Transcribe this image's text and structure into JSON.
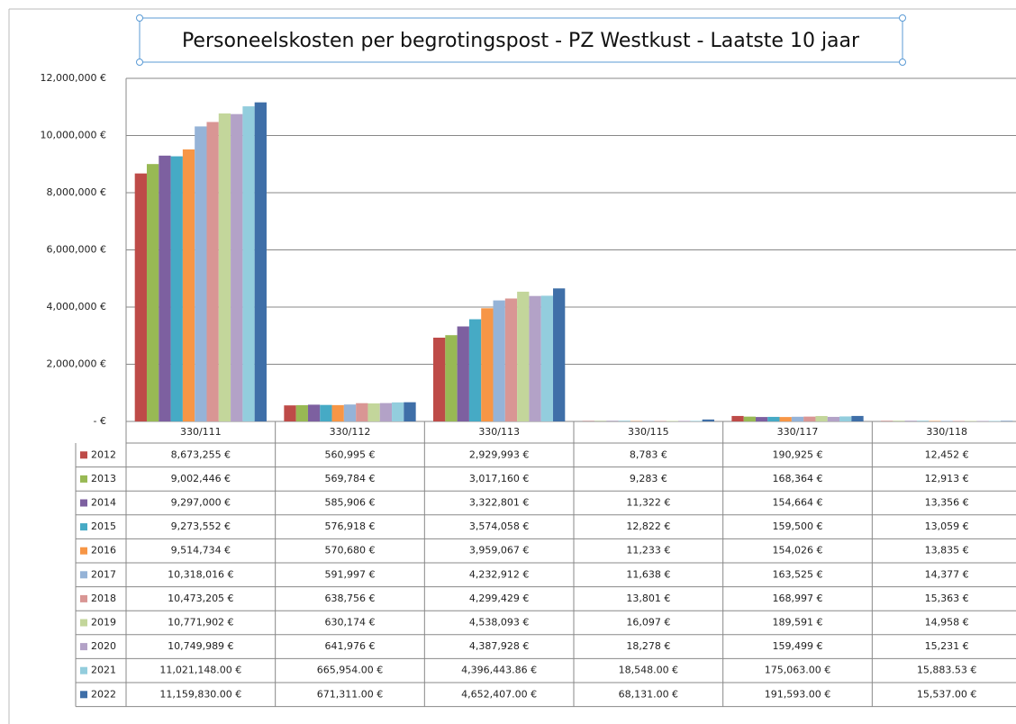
{
  "chart_data": {
    "type": "bar",
    "title": "Personeelskosten per begrotingspost - PZ Westkust - Laatste 10 jaar",
    "categories": [
      "330/111",
      "330/112",
      "330/113",
      "330/115",
      "330/117",
      "330/118"
    ],
    "ylim": [
      0,
      12000000
    ],
    "yticks": [
      {
        "value": 0,
        "label": "- €"
      },
      {
        "value": 2000000,
        "label": "2,000,000 €"
      },
      {
        "value": 4000000,
        "label": "4,000,000 €"
      },
      {
        "value": 6000000,
        "label": "6,000,000 €"
      },
      {
        "value": 8000000,
        "label": "8,000,000 €"
      },
      {
        "value": 10000000,
        "label": "10,000,000 €"
      },
      {
        "value": 12000000,
        "label": "12,000,000 €"
      }
    ],
    "grid": true,
    "series": [
      {
        "name": "2012",
        "color": "#be4b48",
        "values": [
          8673255,
          560995,
          2929993,
          8783,
          190925,
          12452
        ],
        "value_labels": [
          "8,673,255 €",
          "560,995 €",
          "2,929,993 €",
          "8,783 €",
          "190,925 €",
          "12,452 €"
        ]
      },
      {
        "name": "2013",
        "color": "#98b954",
        "values": [
          9002446,
          569784,
          3017160,
          9283,
          168364,
          12913
        ],
        "value_labels": [
          "9,002,446 €",
          "569,784 €",
          "3,017,160 €",
          "9,283 €",
          "168,364 €",
          "12,913 €"
        ]
      },
      {
        "name": "2014",
        "color": "#7d60a0",
        "values": [
          9297000,
          585906,
          3322801,
          11322,
          154664,
          13356
        ],
        "value_labels": [
          "9,297,000 €",
          "585,906 €",
          "3,322,801 €",
          "11,322 €",
          "154,664 €",
          "13,356 €"
        ]
      },
      {
        "name": "2015",
        "color": "#46aac5",
        "values": [
          9273552,
          576918,
          3574058,
          12822,
          159500,
          13059
        ],
        "value_labels": [
          "9,273,552 €",
          "576,918 €",
          "3,574,058 €",
          "12,822 €",
          "159,500 €",
          "13,059 €"
        ]
      },
      {
        "name": "2016",
        "color": "#f79646",
        "values": [
          9514734,
          570680,
          3959067,
          11233,
          154026,
          13835
        ],
        "value_labels": [
          "9,514,734 €",
          "570,680 €",
          "3,959,067 €",
          "11,233 €",
          "154,026 €",
          "13,835 €"
        ]
      },
      {
        "name": "2017",
        "color": "#95b3d7",
        "values": [
          10318016,
          591997,
          4232912,
          11638,
          163525,
          14377
        ],
        "value_labels": [
          "10,318,016 €",
          "591,997 €",
          "4,232,912 €",
          "11,638 €",
          "163,525 €",
          "14,377 €"
        ]
      },
      {
        "name": "2018",
        "color": "#d99694",
        "values": [
          10473205,
          638756,
          4299429,
          13801,
          168997,
          15363
        ],
        "value_labels": [
          "10,473,205 €",
          "638,756 €",
          "4,299,429 €",
          "13,801 €",
          "168,997 €",
          "15,363 €"
        ]
      },
      {
        "name": "2019",
        "color": "#c3d69b",
        "values": [
          10771902,
          630174,
          4538093,
          16097,
          189591,
          14958
        ],
        "value_labels": [
          "10,771,902 €",
          "630,174 €",
          "4,538,093 €",
          "16,097 €",
          "189,591 €",
          "14,958 €"
        ]
      },
      {
        "name": "2020",
        "color": "#b3a2c7",
        "values": [
          10749989,
          641976,
          4387928,
          18278,
          159499,
          15231
        ],
        "value_labels": [
          "10,749,989 €",
          "641,976 €",
          "4,387,928 €",
          "18,278 €",
          "159,499 €",
          "15,231 €"
        ]
      },
      {
        "name": "2021",
        "color": "#93cddd",
        "values": [
          11021148,
          665954,
          4396443.86,
          18548,
          175063,
          15883.53
        ],
        "value_labels": [
          "11,021,148.00 €",
          "665,954.00 €",
          "4,396,443.86 €",
          "18,548.00 €",
          "175,063.00 €",
          "15,883.53 €"
        ]
      },
      {
        "name": "2022",
        "color": "#3f6fa8",
        "values": [
          11159830,
          671311,
          4652407,
          68131,
          191593,
          15537
        ],
        "value_labels": [
          "11,159,830.00 €",
          "671,311.00 €",
          "4,652,407.00 €",
          "68,131.00 €",
          "191,593.00 €",
          "15,537.00 €"
        ]
      }
    ]
  }
}
